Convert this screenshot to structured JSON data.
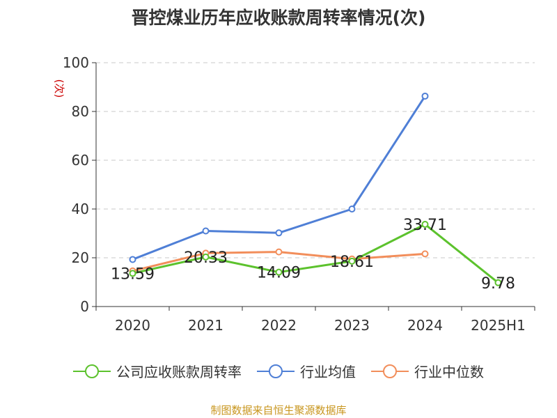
{
  "title": "晋控煤业历年应收账款周转率情况(次)",
  "source": "制图数据来自恒生聚源数据库",
  "chart_data": {
    "type": "line",
    "title": "晋控煤业历年应收账款周转率情况(次)",
    "ylabel": "(次)",
    "xlabel": "",
    "ylim": [
      0,
      100
    ],
    "yticks": [
      0,
      20,
      40,
      60,
      80,
      100
    ],
    "grid": true,
    "legend_position": "bottom",
    "categories": [
      "2020",
      "2021",
      "2022",
      "2023",
      "2024",
      "2025H1"
    ],
    "series": [
      {
        "name": "公司应收账款周转率",
        "color": "#5cc22d",
        "values": [
          13.59,
          20.33,
          14.09,
          18.61,
          33.71,
          9.78
        ],
        "labels": true
      },
      {
        "name": "行业均值",
        "color": "#4f7fd6",
        "values": [
          19.3,
          31.0,
          30.2,
          40.0,
          86.3,
          null
        ],
        "labels": false
      },
      {
        "name": "行业中位数",
        "color": "#f28e5b",
        "values": [
          14.6,
          21.9,
          22.4,
          19.5,
          21.6,
          null
        ],
        "labels": false
      }
    ]
  }
}
